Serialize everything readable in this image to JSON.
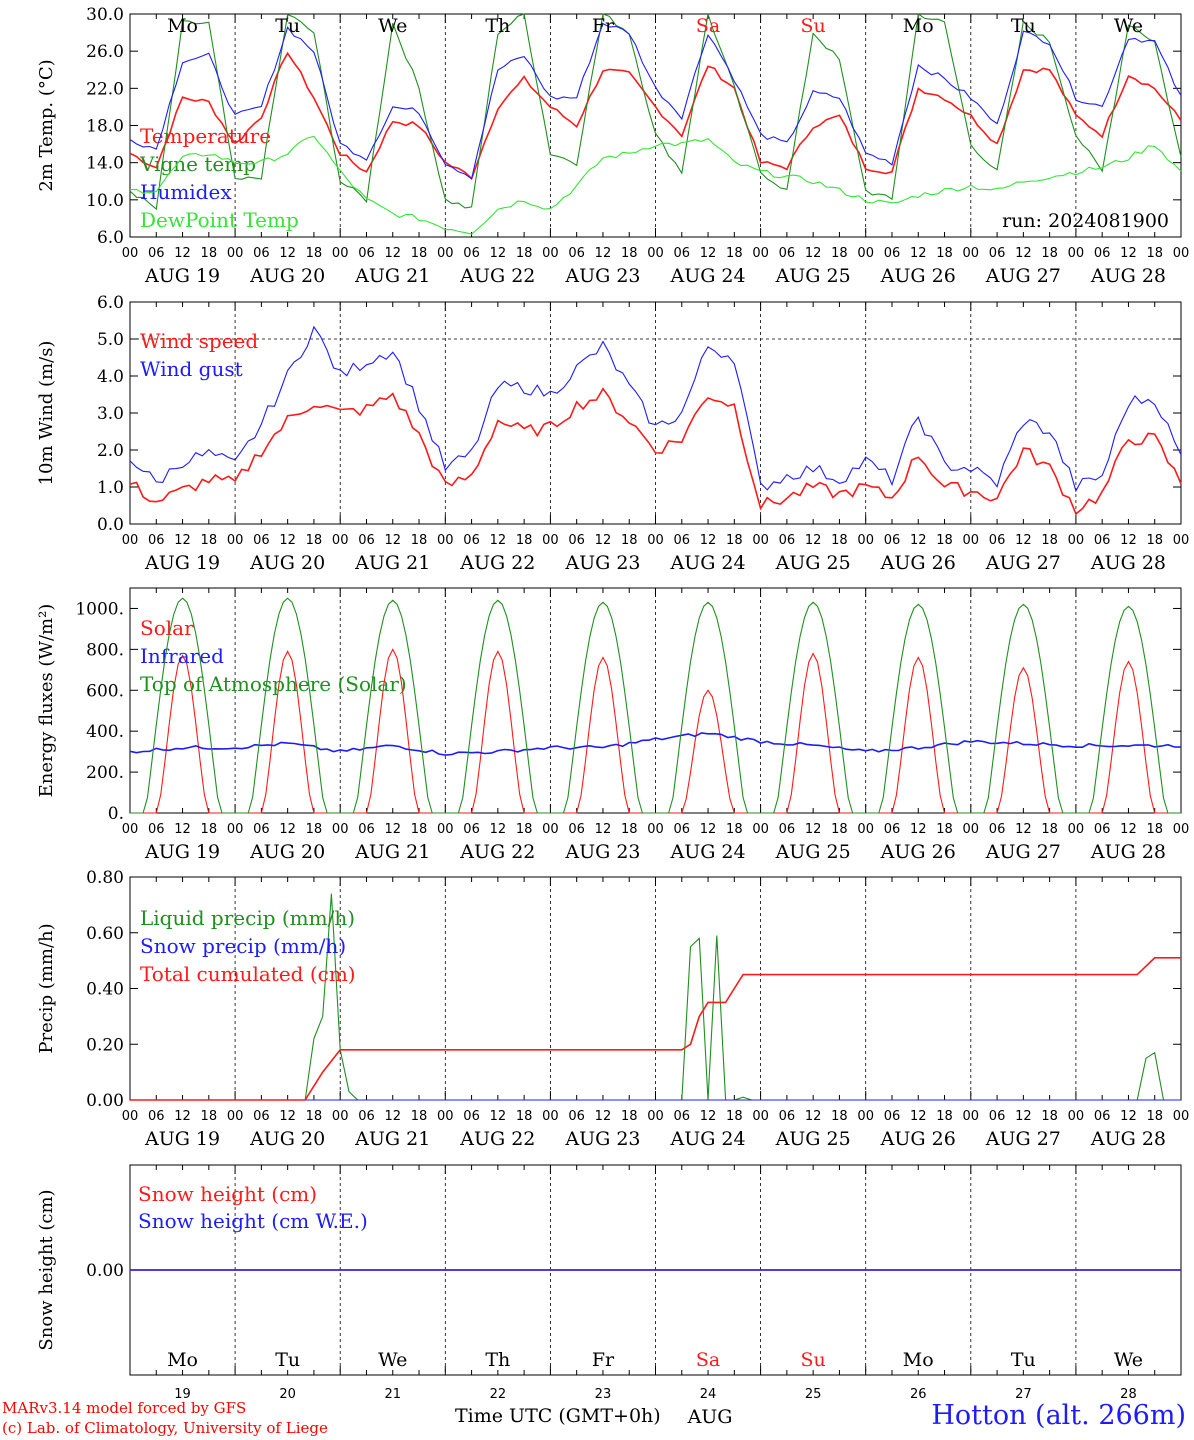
{
  "chart_data": [
    {
      "type": "line",
      "panel": "temperature",
      "ylabel": "2m Temp. (°C)",
      "ylim": [
        6,
        30
      ],
      "yticks": [
        "6.0",
        "10.0",
        "14.0",
        "18.0",
        "22.0",
        "26.0",
        "30.0"
      ],
      "grid": "dashed vertical at 00 UTC",
      "legend_position": "left",
      "annotation": "run: 2024081900",
      "weekday_labels": [
        "Mo",
        "Tu",
        "We",
        "Th",
        "Fr",
        "Sa",
        "Su",
        "Mo",
        "Tu",
        "We"
      ],
      "series": [
        {
          "name": "Temperature",
          "color": "#ff1a1a",
          "x_hours": [
            0,
            6,
            12,
            18,
            24,
            30,
            36,
            42,
            48,
            54,
            60,
            66,
            72,
            78,
            84,
            90,
            96,
            102,
            108,
            114,
            120,
            126,
            132,
            138,
            144,
            150,
            156,
            162,
            168,
            174,
            180,
            186,
            192,
            198,
            204,
            210,
            216,
            222,
            228,
            234,
            240
          ],
          "values": [
            15,
            13.5,
            21,
            20.5,
            16,
            19,
            26,
            21,
            15,
            13,
            18.5,
            18,
            14,
            12.5,
            20,
            23,
            20,
            18,
            24,
            23.5,
            20,
            17,
            24.5,
            22,
            14,
            13.5,
            18,
            19,
            13.5,
            13,
            22,
            21,
            19,
            16,
            24,
            24,
            19,
            17,
            23.5,
            22,
            18.5
          ]
        },
        {
          "name": "Vigne temp",
          "color": "#1f8f1f",
          "x_hours": [
            0,
            6,
            12,
            18,
            24,
            30,
            36,
            42,
            48,
            54,
            60,
            66,
            72,
            78,
            84,
            90,
            96,
            102,
            108,
            114,
            120,
            126,
            132,
            138,
            144,
            150,
            156,
            162,
            168,
            174,
            180,
            186,
            192,
            198,
            204,
            210,
            216,
            222,
            228,
            234,
            240
          ],
          "values": [
            11,
            9,
            29,
            29,
            12,
            12.5,
            30,
            28,
            12,
            10,
            29,
            22,
            10,
            9,
            28,
            30,
            15,
            14,
            30,
            28,
            17,
            13,
            30,
            22,
            13,
            11,
            28,
            25,
            11,
            10,
            30,
            29,
            16,
            13,
            29,
            27,
            17,
            13,
            29,
            27,
            14.5
          ]
        },
        {
          "name": "Humidex",
          "color": "#1c1cff",
          "x_hours": [
            0,
            6,
            12,
            18,
            24,
            30,
            36,
            42,
            48,
            54,
            60,
            66,
            72,
            78,
            84,
            90,
            96,
            102,
            108,
            114,
            120,
            126,
            132,
            138,
            144,
            150,
            156,
            162,
            168,
            174,
            180,
            186,
            192,
            198,
            204,
            210,
            216,
            222,
            228,
            234,
            240
          ],
          "values": [
            16.5,
            15.5,
            25,
            25.5,
            19,
            20,
            28.5,
            26,
            16,
            14.5,
            20,
            19.5,
            14,
            12.5,
            24,
            25.5,
            21,
            21,
            29,
            28,
            22,
            19,
            28,
            23,
            17,
            16,
            21.5,
            21,
            15,
            14,
            24.5,
            23,
            21,
            18,
            28,
            27,
            21,
            20,
            27.5,
            27,
            21
          ]
        },
        {
          "name": "DewPoint Temp",
          "color": "#33e633",
          "x_hours": [
            0,
            6,
            12,
            18,
            24,
            30,
            36,
            42,
            48,
            54,
            60,
            66,
            72,
            78,
            84,
            90,
            96,
            102,
            108,
            114,
            120,
            126,
            132,
            138,
            144,
            150,
            156,
            162,
            168,
            174,
            180,
            186,
            192,
            198,
            204,
            210,
            216,
            222,
            228,
            234,
            240
          ],
          "values": [
            11,
            11,
            14.5,
            15,
            14,
            14,
            15,
            17,
            13,
            10,
            8.5,
            8,
            7,
            6.5,
            9,
            10,
            9,
            11.5,
            14.5,
            15,
            16,
            16,
            16.5,
            14,
            13,
            12.5,
            12,
            11,
            10,
            9.5,
            10.5,
            11,
            11.5,
            11,
            12,
            12.5,
            13,
            13.5,
            14.5,
            16,
            13
          ]
        }
      ]
    },
    {
      "type": "line",
      "panel": "wind",
      "ylabel": "10m Wind (m/s)",
      "ylim": [
        0,
        6
      ],
      "yticks": [
        "0.0",
        "1.0",
        "2.0",
        "3.0",
        "4.0",
        "5.0",
        "6.0"
      ],
      "reference_line": 5,
      "legend_position": "left",
      "series": [
        {
          "name": "Wind speed",
          "color": "#ff1a1a",
          "x_hours": [
            0,
            6,
            12,
            18,
            24,
            30,
            36,
            42,
            48,
            54,
            60,
            66,
            72,
            78,
            84,
            90,
            96,
            102,
            108,
            114,
            120,
            126,
            132,
            138,
            144,
            150,
            156,
            162,
            168,
            174,
            180,
            186,
            192,
            198,
            204,
            210,
            216,
            222,
            228,
            234,
            240
          ],
          "values": [
            1.1,
            0.6,
            0.9,
            1.2,
            1.1,
            2.0,
            2.8,
            3.3,
            3.0,
            3.1,
            3.5,
            2.4,
            1.0,
            1.3,
            2.8,
            2.5,
            2.6,
            3.2,
            3.5,
            2.8,
            2.0,
            2.3,
            3.5,
            3.2,
            0.5,
            0.7,
            1.0,
            0.8,
            1.0,
            0.7,
            1.9,
            1.0,
            0.9,
            0.7,
            2.0,
            1.5,
            0.4,
            0.8,
            2.3,
            2.3,
            1.1
          ]
        },
        {
          "name": "Wind gust",
          "color": "#1c1cff",
          "x_hours": [
            0,
            6,
            12,
            18,
            24,
            30,
            36,
            42,
            48,
            54,
            60,
            66,
            72,
            78,
            84,
            90,
            96,
            102,
            108,
            114,
            120,
            126,
            132,
            138,
            144,
            150,
            156,
            162,
            168,
            174,
            180,
            186,
            192,
            198,
            204,
            210,
            216,
            222,
            228,
            234,
            240
          ],
          "values": [
            1.8,
            1.1,
            1.7,
            1.9,
            1.6,
            2.7,
            4.0,
            5.3,
            4.0,
            4.4,
            4.7,
            3.2,
            1.5,
            1.9,
            3.7,
            3.7,
            3.5,
            4.2,
            4.8,
            3.7,
            2.6,
            3.0,
            4.8,
            4.5,
            1.0,
            1.3,
            1.5,
            1.2,
            1.7,
            1.2,
            2.9,
            1.6,
            1.5,
            1.1,
            2.8,
            2.5,
            1.0,
            1.3,
            3.3,
            3.4,
            1.8
          ]
        }
      ]
    },
    {
      "type": "line",
      "panel": "energy",
      "ylabel": "Energy fluxes (W/m²)",
      "ylim": [
        0,
        1100
      ],
      "yticks": [
        "0.",
        "200.",
        "400.",
        "600.",
        "800.",
        "1000."
      ],
      "legend_position": "left",
      "series": [
        {
          "name": "Solar",
          "color": "#ff1a1a",
          "daily_peak": [
            770,
            790,
            800,
            790,
            760,
            600,
            780,
            760,
            710,
            740
          ]
        },
        {
          "name": "Infrared",
          "color": "#1c1cff",
          "x_hours": [
            0,
            12,
            24,
            36,
            48,
            60,
            72,
            84,
            96,
            108,
            120,
            132,
            144,
            156,
            168,
            180,
            192,
            204,
            216,
            228,
            240
          ],
          "values": [
            300,
            320,
            320,
            340,
            300,
            330,
            290,
            300,
            320,
            320,
            360,
            390,
            350,
            330,
            300,
            320,
            350,
            340,
            330,
            330,
            330
          ]
        },
        {
          "name": "Top of Atmosphere (Solar)",
          "color": "#1f8f1f",
          "daily_peak": [
            1050,
            1050,
            1040,
            1040,
            1030,
            1030,
            1030,
            1020,
            1020,
            1010
          ]
        }
      ]
    },
    {
      "type": "line",
      "panel": "precip",
      "ylabel": "Precip (mm/h)",
      "ylim": [
        0,
        0.8
      ],
      "yticks": [
        "0.00",
        "0.20",
        "0.40",
        "0.60",
        "0.80"
      ],
      "legend_position": "left",
      "series": [
        {
          "name": "Liquid precip (mm/h)",
          "color": "#1f8f1f",
          "x_hours": [
            0,
            40,
            42,
            44,
            46,
            48,
            50,
            52,
            54,
            126,
            128,
            130,
            132,
            134,
            136,
            138,
            140,
            142,
            230,
            232,
            234,
            236,
            240
          ],
          "values": [
            0,
            0,
            0.22,
            0.3,
            0.74,
            0.18,
            0.03,
            0,
            0,
            0,
            0.55,
            0.58,
            0,
            0.59,
            0,
            0,
            0.01,
            0,
            0,
            0.15,
            0.17,
            0,
            0
          ]
        },
        {
          "name": "Snow precip (mm/h)",
          "color": "#1c1cff",
          "x_hours": [
            0,
            240
          ],
          "values": [
            0,
            0
          ]
        },
        {
          "name": "Total cumulated (cm)",
          "color": "#ff1a1a",
          "x_hours": [
            0,
            40,
            44,
            48,
            126,
            128,
            130,
            132,
            136,
            140,
            230,
            234,
            240
          ],
          "values": [
            0,
            0,
            0.1,
            0.18,
            0.18,
            0.2,
            0.3,
            0.35,
            0.35,
            0.45,
            0.45,
            0.51,
            0.51
          ]
        }
      ]
    },
    {
      "type": "line",
      "panel": "snow",
      "ylabel": "Snow height (cm)",
      "yticks": [
        "0.00"
      ],
      "legend_position": "left",
      "weekday_labels": [
        "Mo",
        "Tu",
        "We",
        "Th",
        "Fr",
        "Sa",
        "Su",
        "Mo",
        "Tu",
        "We"
      ],
      "day_numbers": [
        "19",
        "20",
        "21",
        "22",
        "23",
        "24",
        "25",
        "26",
        "27",
        "28"
      ],
      "month": "AUG",
      "series": [
        {
          "name": "Snow height (cm)",
          "color": "#ff1a1a",
          "x_hours": [
            0,
            240
          ],
          "values": [
            0,
            0
          ]
        },
        {
          "name": "Snow height (cm W.E.)",
          "color": "#1c1cff",
          "x_hours": [
            0,
            240
          ],
          "values": [
            0,
            0
          ]
        }
      ]
    }
  ],
  "axis": {
    "hour_ticks": [
      "00",
      "06",
      "12",
      "18"
    ],
    "end_tick": "00",
    "date_labels": [
      "AUG 19",
      "AUG 20",
      "AUG 21",
      "AUG 22",
      "AUG 23",
      "AUG 24",
      "AUG 25",
      "AUG 26",
      "AUG 27",
      "AUG 28"
    ],
    "weekend_color": "#ff1a1a",
    "weekend_indices": [
      5,
      6
    ]
  },
  "footer": {
    "credit_line1": "MARv3.14 model forced by GFS",
    "credit_line2": "(c) Lab. of Climatology, University of Liege",
    "x_title": "Time UTC (GMT+0h)",
    "station": "Hotton (alt. 266m)"
  }
}
